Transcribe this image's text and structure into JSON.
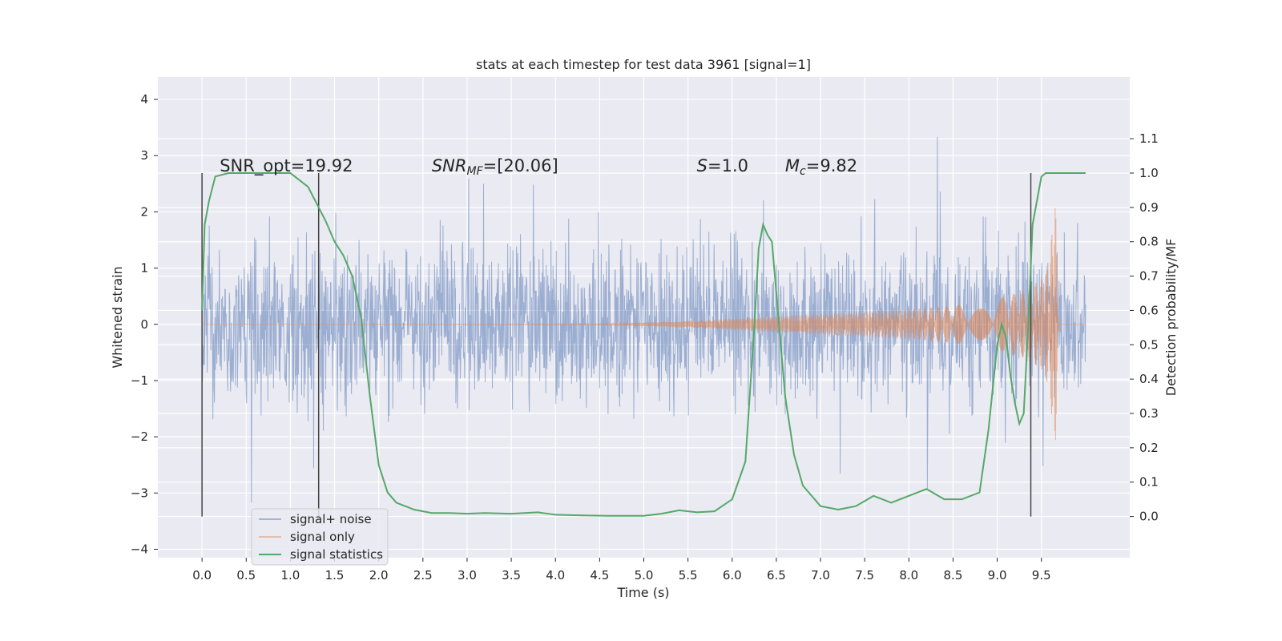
{
  "chart_data": {
    "type": "line",
    "title": "stats at each timestep for test data 3961 [signal=1]",
    "xlabel": "Time (s)",
    "ylabel": "Whitened strain",
    "y2label": "Detection probability/MF",
    "xlim": [
      -0.5,
      10.5
    ],
    "ylim": [
      -4.15,
      4.4
    ],
    "y2lim": [
      -0.12,
      1.28
    ],
    "x_ticks": [
      0.0,
      0.5,
      1.0,
      1.5,
      2.0,
      2.5,
      3.0,
      3.5,
      4.0,
      4.5,
      5.0,
      5.5,
      6.0,
      6.5,
      7.0,
      7.5,
      8.0,
      8.5,
      9.0,
      9.5
    ],
    "y_ticks": [
      -4,
      -3,
      -2,
      -1,
      0,
      1,
      2,
      3,
      4
    ],
    "y2_ticks": [
      0.0,
      0.1,
      0.2,
      0.3,
      0.4,
      0.5,
      0.6,
      0.7,
      0.8,
      0.9,
      1.0,
      1.1
    ],
    "grid": true,
    "legend_position": "bottom-left",
    "series": [
      {
        "name": "signal+ noise",
        "axis": "left",
        "color": "#4c72b0",
        "description_range": [
          0.0,
          10.0
        ],
        "envelope_y": [
          -3.3,
          4.05
        ]
      },
      {
        "name": "signal only",
        "axis": "left",
        "color": "#dd8452",
        "x": [
          0.0,
          4.5,
          5.0,
          5.5,
          6.0,
          6.5,
          7.0,
          7.5,
          8.0,
          8.5,
          9.0,
          9.3,
          9.5,
          9.6,
          9.65,
          9.7
        ],
        "amplitude": [
          0.0,
          0.01,
          0.03,
          0.06,
          0.1,
          0.14,
          0.18,
          0.22,
          0.27,
          0.33,
          0.45,
          0.6,
          0.8,
          1.2,
          2.6,
          0.0
        ]
      },
      {
        "name": "signal statistics",
        "axis": "right",
        "color": "#55a868",
        "x": [
          0.0,
          0.03,
          0.08,
          0.15,
          0.3,
          0.5,
          0.8,
          1.0,
          1.1,
          1.2,
          1.3,
          1.4,
          1.5,
          1.6,
          1.7,
          1.8,
          1.9,
          2.0,
          2.1,
          2.2,
          2.4,
          2.6,
          2.8,
          3.0,
          3.2,
          3.5,
          3.8,
          4.0,
          4.3,
          4.6,
          5.0,
          5.2,
          5.4,
          5.6,
          5.8,
          6.0,
          6.15,
          6.25,
          6.3,
          6.35,
          6.4,
          6.45,
          6.5,
          6.6,
          6.7,
          6.8,
          6.9,
          7.0,
          7.2,
          7.4,
          7.6,
          7.8,
          8.0,
          8.2,
          8.4,
          8.6,
          8.8,
          8.9,
          9.0,
          9.05,
          9.1,
          9.15,
          9.2,
          9.25,
          9.3,
          9.35,
          9.4,
          9.45,
          9.5,
          9.55,
          9.6,
          9.7,
          9.8,
          10.0
        ],
        "y": [
          0.6,
          0.85,
          0.92,
          0.99,
          1.0,
          1.0,
          1.0,
          1.0,
          0.98,
          0.96,
          0.91,
          0.86,
          0.8,
          0.76,
          0.7,
          0.58,
          0.35,
          0.15,
          0.07,
          0.04,
          0.02,
          0.01,
          0.01,
          0.008,
          0.01,
          0.008,
          0.012,
          0.005,
          0.003,
          0.002,
          0.002,
          0.008,
          0.018,
          0.012,
          0.015,
          0.05,
          0.16,
          0.55,
          0.78,
          0.85,
          0.82,
          0.8,
          0.65,
          0.35,
          0.18,
          0.09,
          0.06,
          0.03,
          0.02,
          0.03,
          0.06,
          0.04,
          0.06,
          0.08,
          0.05,
          0.05,
          0.07,
          0.25,
          0.5,
          0.56,
          0.52,
          0.41,
          0.33,
          0.27,
          0.3,
          0.55,
          0.85,
          0.92,
          0.99,
          1.0,
          1.0,
          1.0,
          1.0,
          1.0
        ]
      }
    ],
    "vlines": [
      {
        "x": 0.0,
        "y2_range": [
          0.0,
          1.0
        ]
      },
      {
        "x": 1.32,
        "y2_range": [
          0.0,
          1.0
        ]
      },
      {
        "x": 9.38,
        "y2_range": [
          0.0,
          1.0
        ]
      }
    ],
    "annotations": [
      {
        "text": "SNR_opt=19.92",
        "x": 0.2,
        "y2": 1.0
      },
      {
        "text": "SNR",
        "sub": "MF",
        "rest": "=[20.06]",
        "x": 2.6,
        "y2": 1.0
      },
      {
        "text": "S",
        "rest": "=1.0",
        "x": 5.6,
        "y2": 1.0
      },
      {
        "text": "M",
        "sub": "c",
        "rest": "=9.82",
        "x": 6.6,
        "y2": 1.0
      }
    ]
  }
}
